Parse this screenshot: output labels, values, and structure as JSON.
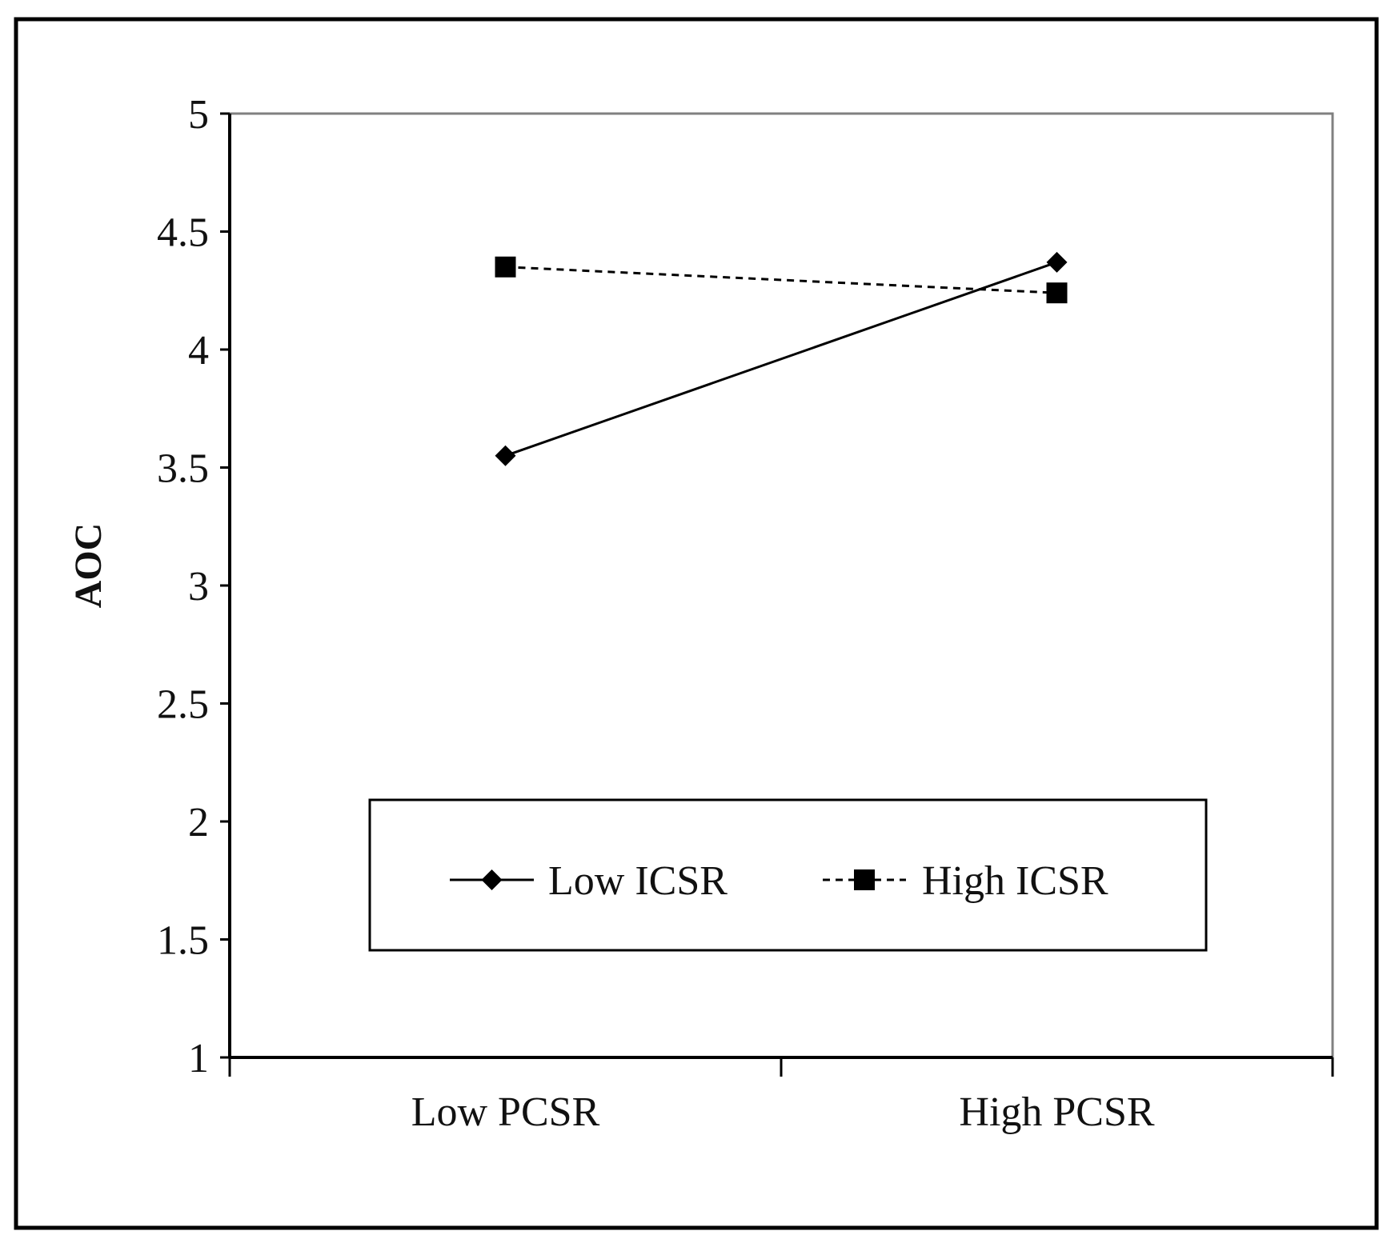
{
  "chart_data": {
    "type": "line",
    "title": "",
    "xlabel": "",
    "ylabel": "AOC",
    "categories": [
      "Low PCSR",
      "High PCSR"
    ],
    "ylim": [
      1,
      5
    ],
    "yticks": [
      "1",
      "1.5",
      "2",
      "2.5",
      "3",
      "3.5",
      "4",
      "4.5",
      "5"
    ],
    "grid": false,
    "legend_position": "lower-center",
    "series": [
      {
        "name": "Low ICSR",
        "values": [
          3.55,
          4.37
        ],
        "line_style": "solid",
        "marker": "diamond",
        "color": "#000000"
      },
      {
        "name": "High ICSR",
        "values": [
          4.35,
          4.24
        ],
        "line_style": "dashed",
        "marker": "square",
        "color": "#000000"
      }
    ]
  }
}
